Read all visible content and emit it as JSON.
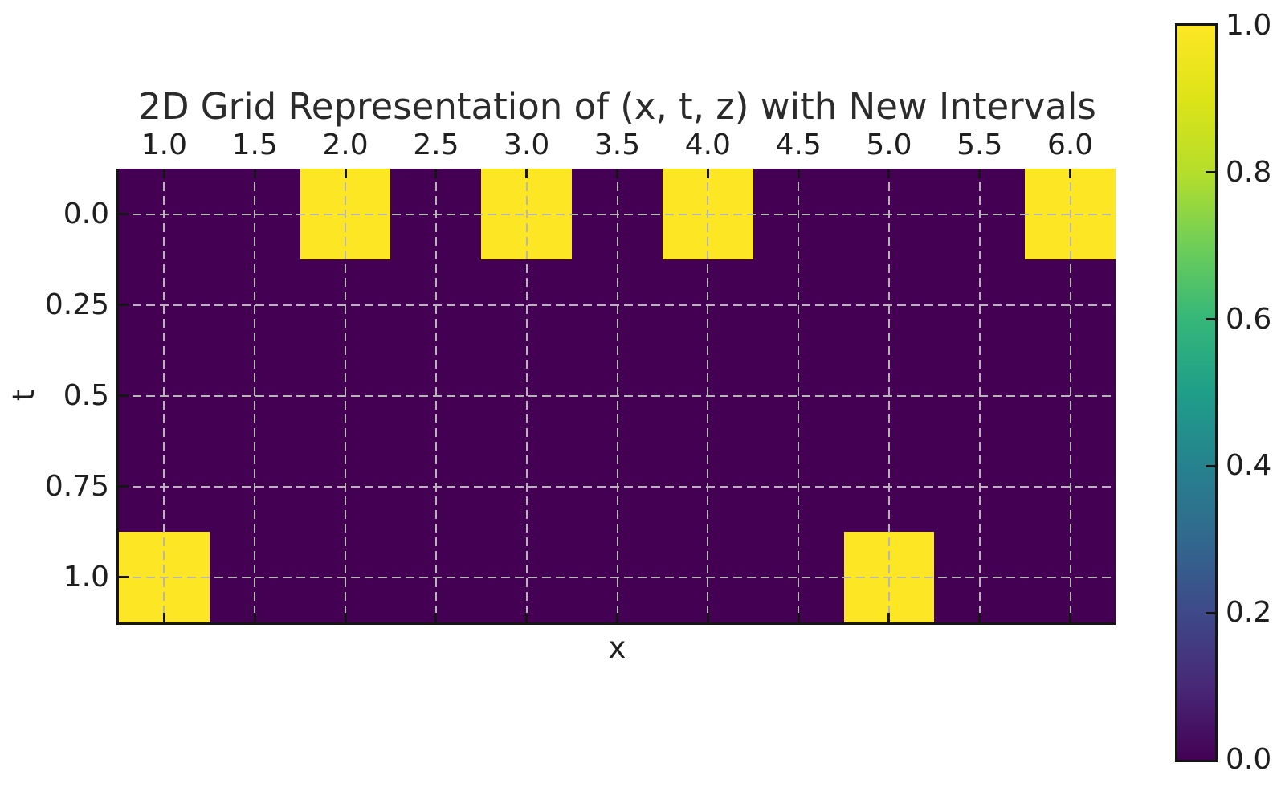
{
  "chart_data": {
    "type": "heatmap",
    "title": "2D Grid Representation of (x, t, z) with New Intervals",
    "xlabel": "x",
    "ylabel": "t",
    "x_tick_values": [
      1.0,
      1.5,
      2.0,
      2.5,
      3.0,
      3.5,
      4.0,
      4.5,
      5.0,
      5.5,
      6.0
    ],
    "x_tick_labels": [
      "1.0",
      "1.5",
      "2.0",
      "2.5",
      "3.0",
      "3.5",
      "4.0",
      "4.5",
      "5.0",
      "5.5",
      "6.0"
    ],
    "t_tick_values": [
      0.0,
      0.25,
      0.5,
      0.75,
      1.0
    ],
    "t_tick_labels": [
      "0.0",
      "0.25",
      "0.5",
      "0.75",
      "1.0"
    ],
    "xlim": [
      0.75,
      6.25
    ],
    "tlim": [
      -0.125,
      1.125
    ],
    "x_centers": [
      1.0,
      1.5,
      2.0,
      2.5,
      3.0,
      3.5,
      4.0,
      4.5,
      5.0,
      5.5,
      6.0
    ],
    "t_centers": [
      0.0,
      0.25,
      0.5,
      0.75,
      1.0
    ],
    "z": [
      [
        0,
        0,
        1,
        0,
        1,
        0,
        1,
        0,
        0,
        0,
        1
      ],
      [
        0,
        0,
        0,
        0,
        0,
        0,
        0,
        0,
        0,
        0,
        0
      ],
      [
        0,
        0,
        0,
        0,
        0,
        0,
        0,
        0,
        0,
        0,
        0
      ],
      [
        0,
        0,
        0,
        0,
        0,
        0,
        0,
        0,
        0,
        0,
        0
      ],
      [
        1,
        0,
        0,
        0,
        0,
        0,
        0,
        0,
        1,
        0,
        0
      ]
    ],
    "zlim": [
      0.0,
      1.0
    ],
    "grid": true,
    "grid_style": "dashed",
    "x_axis_label_position": "top",
    "colormap": "viridis",
    "colormap_stops": [
      {
        "v": 0.0,
        "c": "#440154"
      },
      {
        "v": 0.1,
        "c": "#482878"
      },
      {
        "v": 0.2,
        "c": "#3e4989"
      },
      {
        "v": 0.3,
        "c": "#31688e"
      },
      {
        "v": 0.4,
        "c": "#26828e"
      },
      {
        "v": 0.5,
        "c": "#1f9e89"
      },
      {
        "v": 0.6,
        "c": "#35b779"
      },
      {
        "v": 0.7,
        "c": "#6ece58"
      },
      {
        "v": 0.8,
        "c": "#b5de2b"
      },
      {
        "v": 0.9,
        "c": "#dde318"
      },
      {
        "v": 1.0,
        "c": "#fde725"
      }
    ],
    "colorbar": {
      "position": "right",
      "tick_values": [
        0.0,
        0.2,
        0.4,
        0.6,
        0.8,
        1.0
      ],
      "tick_labels": [
        "0.0",
        "0.2",
        "0.4",
        "0.6",
        "0.8",
        "1.0"
      ]
    },
    "colors": {
      "cell_low": "#440154",
      "cell_high": "#fde725",
      "gridline": "#b6b6b6",
      "spine": "#151515",
      "text": "#1f1f1f",
      "background": "#ffffff"
    }
  }
}
